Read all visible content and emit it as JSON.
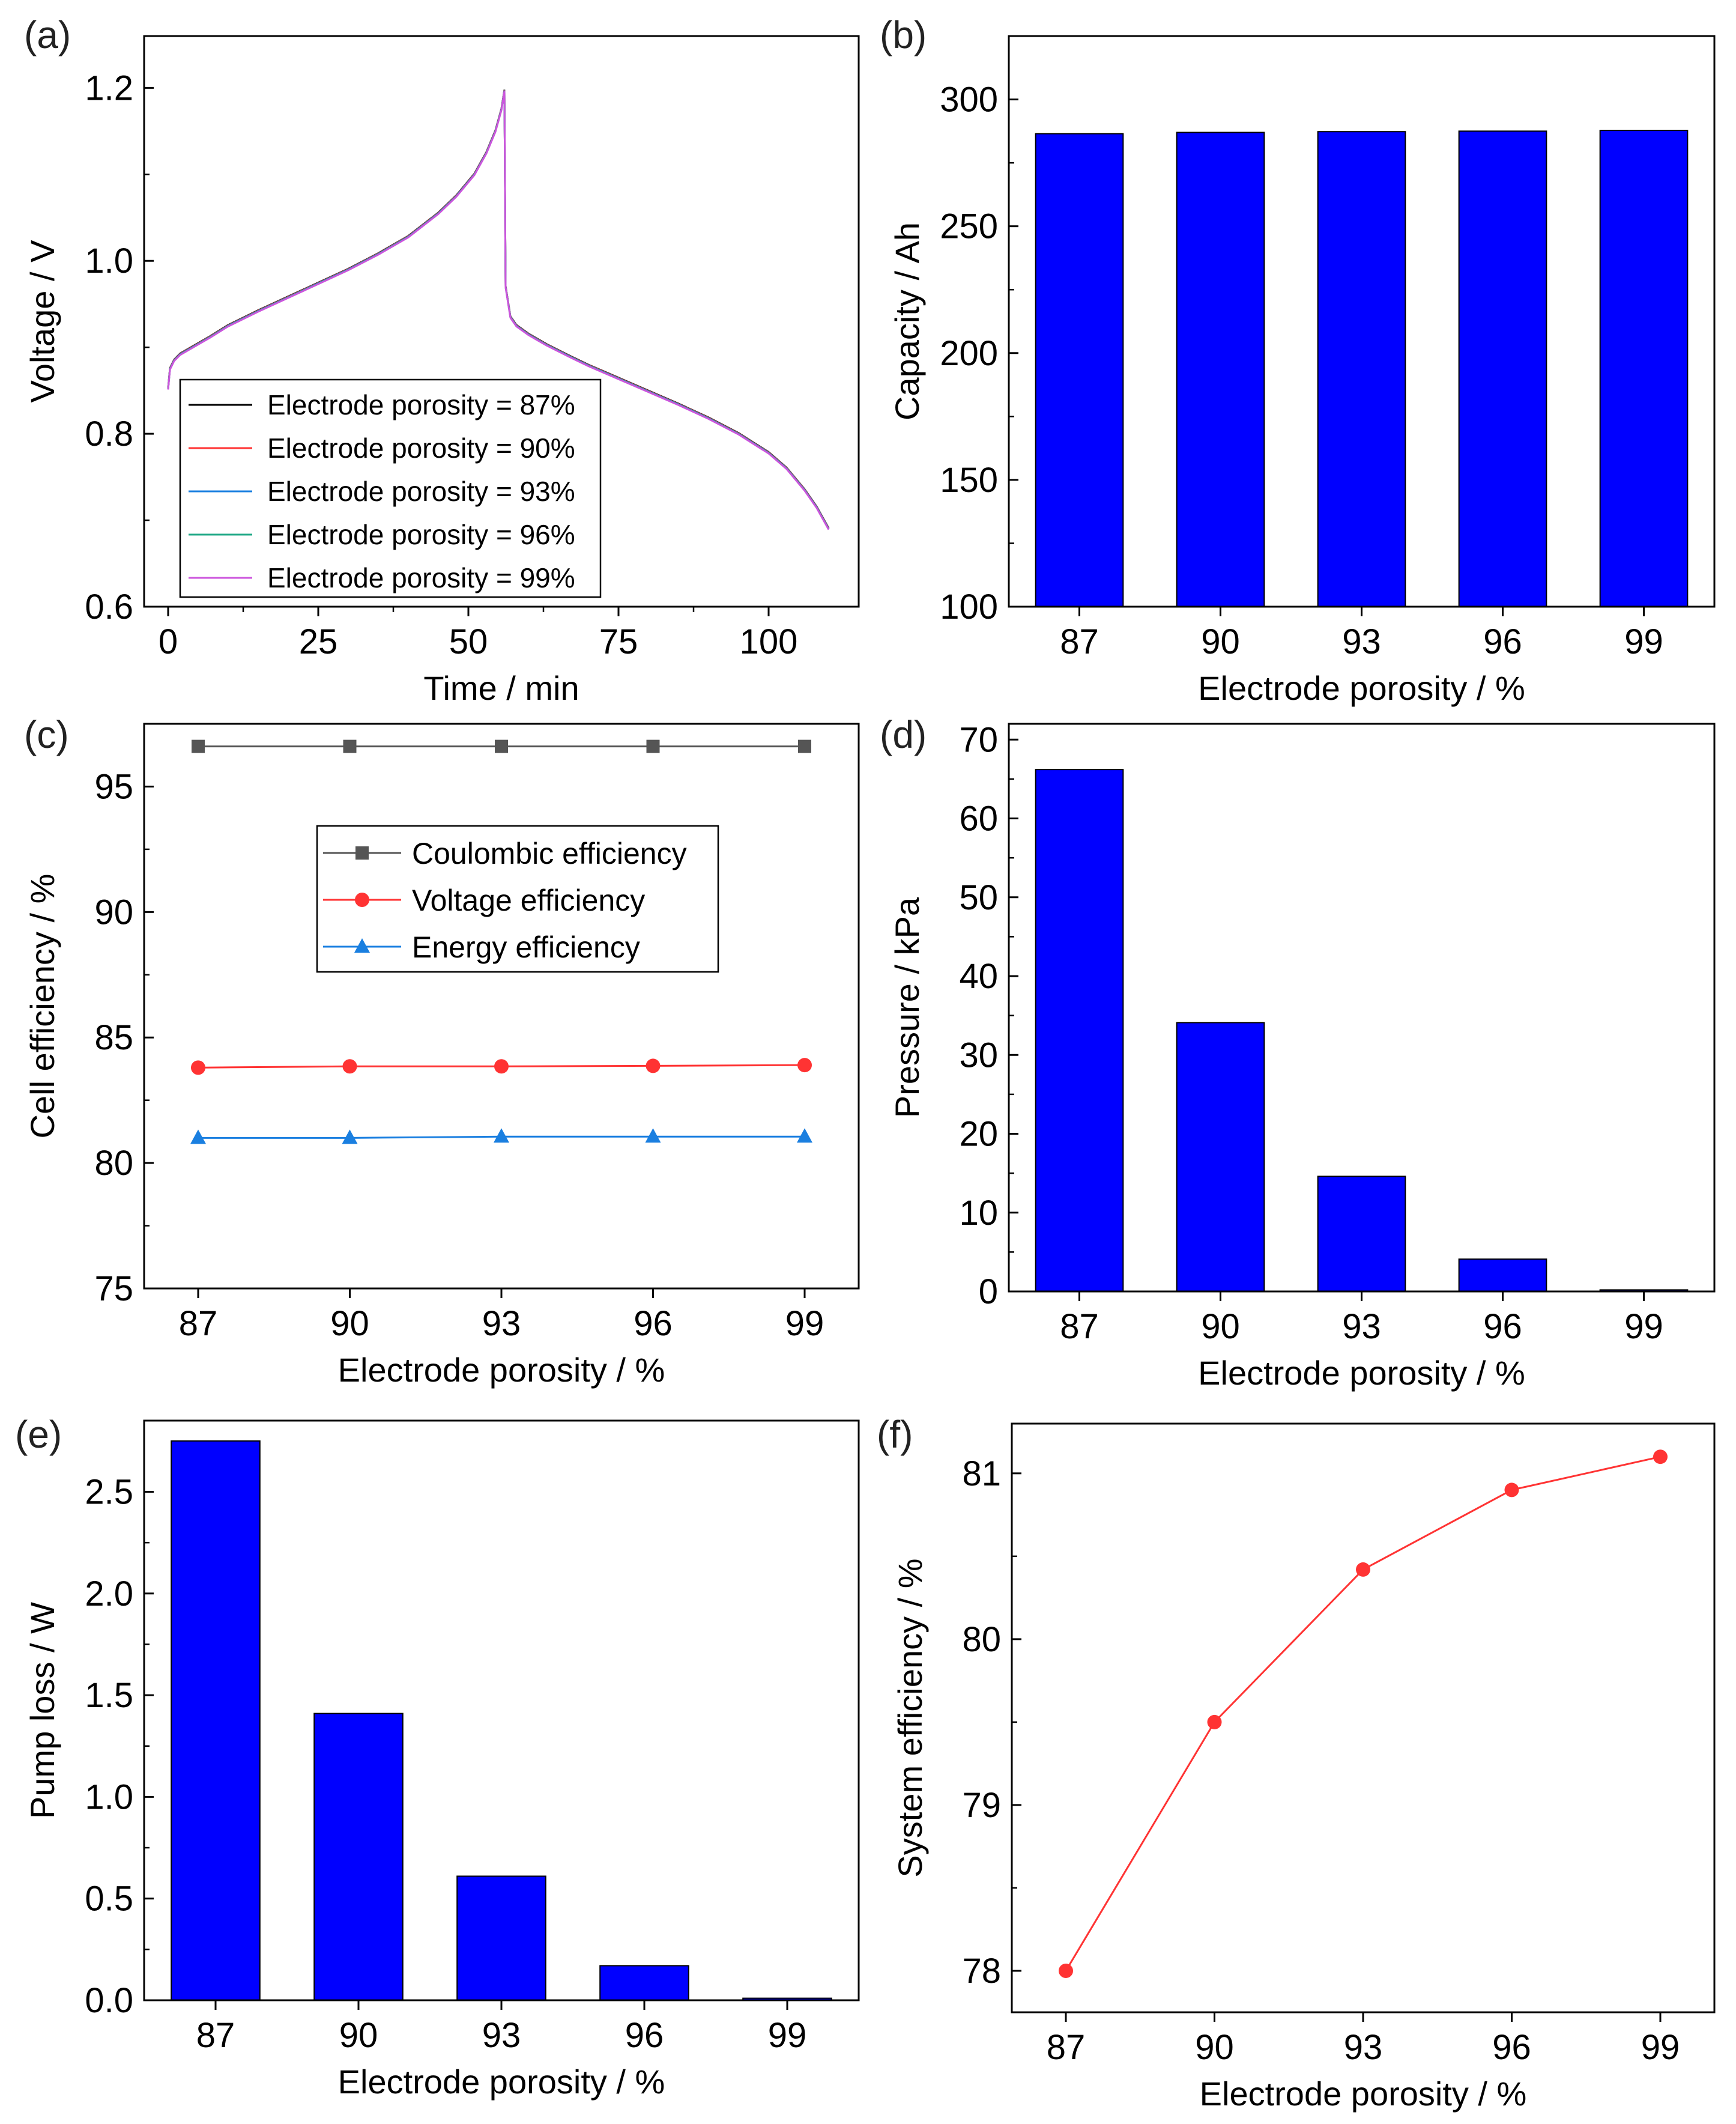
{
  "colors": {
    "bar": "#0000ff",
    "black": "#000000",
    "frame": "#000000",
    "gray": "#555555",
    "red": "#ff3333",
    "blue": "#1a7fe0",
    "green": "#22aa88",
    "purple": "#cc55dd"
  },
  "chart_data": [
    {
      "id": "a",
      "panel_label": "(a)",
      "type": "line",
      "xlabel": "Time / min",
      "ylabel": "Voltage / V",
      "xlim": [
        -4,
        115
      ],
      "ylim": [
        0.6,
        1.26
      ],
      "xticks": [
        0,
        25,
        50,
        75,
        100
      ],
      "xtick_labels": [
        "0",
        "25",
        "50",
        "75",
        "100"
      ],
      "yticks": [
        0.6,
        0.8,
        1.0,
        1.2
      ],
      "ytick_labels": [
        "0.6",
        "0.8",
        "1.0",
        "1.2"
      ],
      "curve": {
        "x": [
          0,
          0.3,
          1,
          2,
          4,
          7,
          10,
          15,
          20,
          25,
          30,
          35,
          40,
          45,
          48,
          51,
          53,
          54.5,
          55.5,
          56,
          56.2,
          57,
          58,
          60,
          63,
          67,
          70,
          75,
          80,
          85,
          90,
          95,
          100,
          103,
          106,
          108,
          110
        ],
        "y": [
          0.852,
          0.875,
          0.885,
          0.892,
          0.9,
          0.912,
          0.925,
          0.942,
          0.958,
          0.974,
          0.99,
          1.008,
          1.028,
          1.055,
          1.075,
          1.1,
          1.125,
          1.15,
          1.175,
          1.197,
          0.97,
          0.935,
          0.925,
          0.915,
          0.903,
          0.889,
          0.879,
          0.864,
          0.849,
          0.834,
          0.818,
          0.8,
          0.778,
          0.76,
          0.735,
          0.715,
          0.69
        ]
      },
      "series": [
        {
          "name": "Electrode porosity = 87%",
          "color": "#000000"
        },
        {
          "name": "Electrode porosity = 90%",
          "color": "#ff3333"
        },
        {
          "name": "Electrode porosity = 93%",
          "color": "#1a7fe0"
        },
        {
          "name": "Electrode porosity = 96%",
          "color": "#22aa88"
        },
        {
          "name": "Electrode porosity = 99%",
          "color": "#cc55dd"
        }
      ],
      "legend_position": "lower-left"
    },
    {
      "id": "b",
      "panel_label": "(b)",
      "type": "bar",
      "xlabel": "Electrode porosity / %",
      "ylabel": "Capacity / Ah",
      "categories": [
        "87",
        "90",
        "93",
        "96",
        "99"
      ],
      "values": [
        286.5,
        287.0,
        287.3,
        287.5,
        287.8
      ],
      "ylim": [
        100,
        325
      ],
      "yticks": [
        100,
        150,
        200,
        250,
        300
      ],
      "ytick_labels": [
        "100",
        "150",
        "200",
        "250",
        "300"
      ]
    },
    {
      "id": "c",
      "panel_label": "(c)",
      "type": "line",
      "xlabel": "Electrode porosity / %",
      "ylabel": "Cell efficiency / %",
      "categories": [
        "87",
        "90",
        "93",
        "96",
        "99"
      ],
      "ylim": [
        75,
        97.5
      ],
      "yticks": [
        75,
        80,
        85,
        90,
        95
      ],
      "ytick_labels": [
        "75",
        "80",
        "85",
        "90",
        "95"
      ],
      "series": [
        {
          "name": "Coulombic efficiency",
          "marker": "square",
          "color": "#555555",
          "values": [
            96.6,
            96.6,
            96.6,
            96.6,
            96.6
          ]
        },
        {
          "name": "Voltage efficiency",
          "marker": "circle",
          "color": "#ff3333",
          "values": [
            83.8,
            83.85,
            83.85,
            83.87,
            83.9
          ]
        },
        {
          "name": "Energy efficiency",
          "marker": "triangle",
          "color": "#1a7fe0",
          "values": [
            81.0,
            81.0,
            81.05,
            81.05,
            81.05
          ]
        }
      ],
      "legend_position": "center"
    },
    {
      "id": "d",
      "panel_label": "(d)",
      "type": "bar",
      "xlabel": "Electrode porosity / %",
      "ylabel": "Pressure / kPa",
      "categories": [
        "87",
        "90",
        "93",
        "96",
        "99"
      ],
      "values": [
        66.2,
        34.1,
        14.6,
        4.1,
        0.2
      ],
      "ylim": [
        0,
        72
      ],
      "yticks": [
        0,
        10,
        20,
        30,
        40,
        50,
        60,
        70
      ],
      "ytick_labels": [
        "0",
        "10",
        "20",
        "30",
        "40",
        "50",
        "60",
        "70"
      ]
    },
    {
      "id": "e",
      "panel_label": "(e)",
      "type": "bar",
      "xlabel": "Electrode porosity / %",
      "ylabel": "Pump loss / W",
      "categories": [
        "87",
        "90",
        "93",
        "96",
        "99"
      ],
      "values": [
        2.75,
        1.41,
        0.61,
        0.17,
        0.01
      ],
      "ylim": [
        0,
        2.85
      ],
      "yticks": [
        0.0,
        0.5,
        1.0,
        1.5,
        2.0,
        2.5
      ],
      "ytick_labels": [
        "0.0",
        "0.5",
        "1.0",
        "1.5",
        "2.0",
        "2.5"
      ]
    },
    {
      "id": "f",
      "panel_label": "(f)",
      "type": "line",
      "xlabel": "Electrode porosity / %",
      "ylabel": "System efficiency / %",
      "categories": [
        "87",
        "90",
        "93",
        "96",
        "99"
      ],
      "values": [
        78.0,
        79.5,
        80.42,
        80.9,
        81.1
      ],
      "ylim": [
        77.75,
        81.3
      ],
      "yticks": [
        78,
        79,
        80,
        81
      ],
      "ytick_labels": [
        "78",
        "79",
        "80",
        "81"
      ]
    }
  ]
}
